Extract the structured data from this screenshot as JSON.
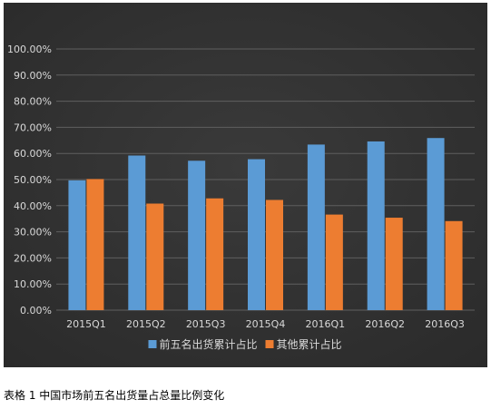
{
  "caption": "表格  1 中国市场前五名出货量占总量比例变化",
  "colors": {
    "background": "#3a3a3a",
    "background_edge": "#2a2a2a",
    "grid": "#5f5f5f",
    "series_blue": "#5b9bd5",
    "series_orange": "#ed7d31"
  },
  "chart_data": {
    "type": "bar",
    "title": "",
    "xlabel": "",
    "ylabel": "",
    "ylim": [
      0,
      100
    ],
    "yticks": [
      "0.00%",
      "10.00%",
      "20.00%",
      "30.00%",
      "40.00%",
      "50.00%",
      "60.00%",
      "70.00%",
      "80.00%",
      "90.00%",
      "100.00%"
    ],
    "grid": true,
    "legend_position": "bottom",
    "categories": [
      "2015Q1",
      "2015Q2",
      "2015Q3",
      "2015Q4",
      "2016Q1",
      "2016Q2",
      "2016Q3"
    ],
    "series": [
      {
        "name": "前五名出货累计占比",
        "color": "#5b9bd5",
        "values": [
          49.7,
          59.2,
          57.2,
          57.8,
          63.4,
          64.6,
          65.9
        ]
      },
      {
        "name": "其他累计占比",
        "color": "#ed7d31",
        "values": [
          50.2,
          40.8,
          42.8,
          42.2,
          36.6,
          35.4,
          34.1
        ]
      }
    ]
  }
}
